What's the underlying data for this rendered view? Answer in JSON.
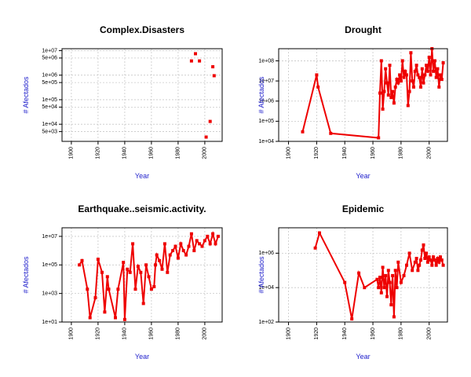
{
  "figure": {
    "colors": {
      "series": "#ee0000",
      "axis_label": "#2222cc",
      "grid": "#c8c8c8",
      "text": "#000000"
    }
  },
  "chart_data": [
    {
      "type": "scatter",
      "title": "Complex.Disasters",
      "xlabel": "Year",
      "ylabel": "# Afectados",
      "y_scale": "log",
      "xlim": [
        1893,
        2013
      ],
      "ylim": [
        2000,
        12000000
      ],
      "x_ticks": [
        1900,
        1920,
        1940,
        1960,
        1980,
        2000
      ],
      "x_tick_labels": [
        "1900",
        "1920",
        "1940",
        "1960",
        "1980",
        "2000"
      ],
      "y_ticks": [
        5000,
        10000,
        50000,
        100000,
        500000,
        1000000,
        5000000,
        10000000
      ],
      "y_tick_labels": [
        "5e+03",
        "1e+04",
        "5e+04",
        "1e+05",
        "5e+05",
        "1e+06",
        "5e+06",
        "1e+07"
      ],
      "grid": true,
      "x": [
        1990,
        1993,
        1996,
        2001,
        2004,
        2006,
        2007
      ],
      "y": [
        3800000,
        7500000,
        3800000,
        3000,
        13000,
        2200000,
        950000
      ]
    },
    {
      "type": "line",
      "title": "Drought",
      "xlabel": "Year",
      "ylabel": "# Afectados",
      "y_scale": "log",
      "xlim": [
        1893,
        2013
      ],
      "ylim": [
        10000,
        400000000
      ],
      "x_ticks": [
        1900,
        1920,
        1940,
        1960,
        1980,
        2000
      ],
      "x_tick_labels": [
        "1900",
        "1920",
        "1940",
        "1960",
        "1980",
        "2000"
      ],
      "y_ticks": [
        10000,
        100000,
        1000000,
        10000000,
        100000000
      ],
      "y_tick_labels": [
        "1e+04",
        "1e+05",
        "1e+06",
        "1e+07",
        "1e+08"
      ],
      "grid": true,
      "x": [
        1910,
        1920,
        1921,
        1930,
        1964,
        1965,
        1966,
        1967,
        1968,
        1969,
        1970,
        1971,
        1972,
        1973,
        1974,
        1975,
        1976,
        1977,
        1978,
        1979,
        1980,
        1981,
        1982,
        1983,
        1984,
        1985,
        1986,
        1987,
        1988,
        1989,
        1990,
        1991,
        1992,
        1993,
        1994,
        1995,
        1996,
        1997,
        1998,
        1999,
        2000,
        2001,
        2002,
        2003,
        2004,
        2005,
        2006,
        2007,
        2008,
        2009,
        2010
      ],
      "y": [
        30000,
        20000000,
        5000000,
        25000,
        15000,
        2500000,
        100000000,
        400000,
        3000000,
        40000000,
        8000000,
        2000000,
        60000000,
        1500000,
        3000000,
        800000,
        5000000,
        12000000,
        8000000,
        20000000,
        10000000,
        100000000,
        15000000,
        30000000,
        20000000,
        600000,
        3000000,
        250000000,
        10000000,
        5000000,
        30000000,
        60000000,
        20000000,
        15000000,
        5000000,
        40000000,
        8000000,
        20000000,
        60000000,
        30000000,
        150000000,
        20000000,
        400000000,
        30000000,
        100000000,
        15000000,
        40000000,
        5000000,
        20000000,
        12000000,
        80000000
      ]
    },
    {
      "type": "line",
      "title": "Earthquake..seismic.activity.",
      "xlabel": "Year",
      "ylabel": "# Afectados",
      "y_scale": "log",
      "xlim": [
        1893,
        2013
      ],
      "ylim": [
        10,
        40000000
      ],
      "x_ticks": [
        1900,
        1920,
        1940,
        1960,
        1980,
        2000
      ],
      "x_tick_labels": [
        "1900",
        "1920",
        "1940",
        "1960",
        "1980",
        "2000"
      ],
      "y_ticks": [
        10,
        1000,
        100000,
        10000000
      ],
      "y_tick_labels": [
        "1e+01",
        "1e+03",
        "1e+05",
        "1e+07"
      ],
      "grid": true,
      "x": [
        1906,
        1908,
        1912,
        1914,
        1918,
        1920,
        1923,
        1925,
        1927,
        1928,
        1933,
        1935,
        1939,
        1940,
        1942,
        1944,
        1946,
        1948,
        1950,
        1952,
        1954,
        1956,
        1958,
        1960,
        1962,
        1963,
        1964,
        1966,
        1968,
        1970,
        1972,
        1974,
        1976,
        1978,
        1980,
        1982,
        1984,
        1986,
        1988,
        1990,
        1992,
        1994,
        1996,
        1998,
        2000,
        2002,
        2004,
        2006,
        2008,
        2010
      ],
      "y": [
        100000,
        200000,
        2000,
        20,
        500,
        250000,
        30000,
        50,
        15000,
        2000,
        20,
        2000,
        150000,
        15,
        50000,
        30000,
        3000000,
        2000,
        80000,
        30000,
        200,
        100000,
        15000,
        2000,
        3000,
        100000,
        500000,
        200000,
        50000,
        3000000,
        30000,
        500000,
        1000000,
        2000000,
        300000,
        3000000,
        1000000,
        500000,
        2000000,
        15000000,
        1000000,
        5000000,
        3000000,
        2000000,
        5000000,
        10000000,
        3000000,
        15000000,
        3000000,
        10000000
      ]
    },
    {
      "type": "line",
      "title": "Epidemic",
      "xlabel": "Year",
      "ylabel": "# Afectados",
      "y_scale": "log",
      "xlim": [
        1893,
        2013
      ],
      "ylim": [
        100,
        30000000
      ],
      "x_ticks": [
        1900,
        1920,
        1940,
        1960,
        1980,
        2000
      ],
      "x_tick_labels": [
        "1900",
        "1920",
        "1940",
        "1960",
        "1980",
        "2000"
      ],
      "y_ticks": [
        100,
        10000,
        1000000
      ],
      "y_tick_labels": [
        "1e+02",
        "1e+04",
        "1e+06"
      ],
      "grid": true,
      "x": [
        1919,
        1922,
        1940,
        1945,
        1950,
        1954,
        1963,
        1964,
        1965,
        1966,
        1967,
        1968,
        1969,
        1970,
        1971,
        1972,
        1973,
        1974,
        1975,
        1976,
        1977,
        1978,
        1980,
        1982,
        1984,
        1986,
        1988,
        1990,
        1991,
        1992,
        1993,
        1994,
        1995,
        1996,
        1997,
        1998,
        1999,
        2000,
        2001,
        2002,
        2003,
        2004,
        2005,
        2006,
        2007,
        2008,
        2009,
        2010
      ],
      "y": [
        2000000,
        15000000,
        20000,
        150,
        70000,
        10000,
        30000,
        10000,
        40000,
        5000,
        150000,
        10000,
        50000,
        3000,
        100000,
        20000,
        1000,
        50000,
        200,
        100000,
        10000,
        300000,
        20000,
        50000,
        200000,
        1000000,
        100000,
        300000,
        500000,
        100000,
        200000,
        400000,
        1500000,
        3000000,
        500000,
        1000000,
        300000,
        600000,
        400000,
        200000,
        600000,
        400000,
        200000,
        500000,
        300000,
        600000,
        400000,
        200000
      ]
    }
  ]
}
